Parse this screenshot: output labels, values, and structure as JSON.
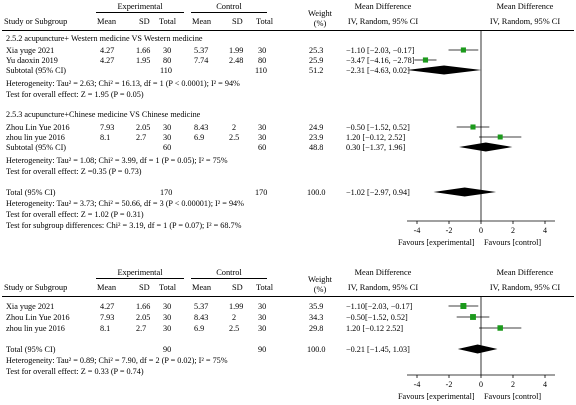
{
  "plot1": {
    "header": {
      "group_exp": "Experimental",
      "group_ctrl": "Control",
      "study": "Study or Subgroup",
      "mean": "Mean",
      "sd": "SD",
      "total": "Total",
      "weight": "Weight",
      "weight_unit": "(%)",
      "md": "Mean Difference",
      "md_method": "IV, Random, 95% CI",
      "md_plot": "Mean Difference",
      "md_plot_method": "IV, Random, 95% CI"
    },
    "subgroup1": {
      "title": "2.5.2 acupuncture+ Western medicine VS Western medicine",
      "studies": [
        {
          "name": "Xia yuge 2021",
          "e_mean": "4.27",
          "e_sd": "1.66",
          "e_n": "30",
          "c_mean": "5.37",
          "c_sd": "1.99",
          "c_n": "30",
          "weight": "25.3",
          "ci": "−1.10 [−2.03, −0.17]"
        },
        {
          "name": "Yu daoxin 2019",
          "e_mean": "4.27",
          "e_sd": "1.95",
          "e_n": "80",
          "c_mean": "7.74",
          "c_sd": "2.48",
          "c_n": "80",
          "weight": "25.9",
          "ci": "−3.47 [−4.16, −2.78]"
        }
      ],
      "subtotal": {
        "label": "Subtotal (95% CI)",
        "e_n": "110",
        "c_n": "110",
        "weight": "51.2",
        "ci": "−2.31 [−4.63, 0.02]"
      },
      "heterogeneity": "Heterogeneity: Tau² = 2.63; Chi² = 16.13, df = 1 (P < 0.0001); I² = 94%",
      "overall": "Test for overall effect: Z = 1.95 (P = 0.05)"
    },
    "subgroup2": {
      "title": "2.5.3 acupuncture+Chinese medicine VS Chinese medicine",
      "studies": [
        {
          "name": "Zhou Lin Yue 2016",
          "e_mean": "7.93",
          "e_sd": "2.05",
          "e_n": "30",
          "c_mean": "8.43",
          "c_sd": "2",
          "c_n": "30",
          "weight": "24.9",
          "ci": "−0.50 [−1.52, 0.52]"
        },
        {
          "name": "zhou lin yue 2016",
          "e_mean": "8.1",
          "e_sd": "2.7",
          "e_n": "30",
          "c_mean": "6.9",
          "c_sd": "2.5",
          "c_n": "30",
          "weight": "23.9",
          "ci": "1.20 [−0.12, 2.52]"
        }
      ],
      "subtotal": {
        "label": "Subtotal (95% CI)",
        "e_n": "60",
        "c_n": "60",
        "weight": "48.8",
        "ci": "0.30 [−1.37, 1.96]"
      },
      "heterogeneity": "Heterogeneity: Tau² = 1.08; Chi² = 3.99, df = 1 (P = 0.05); I² = 75%",
      "overall": "Test for overall effect: Z =0.35 (P = 0.73)"
    },
    "total": {
      "label": "Total (95% CI)",
      "e_n": "170",
      "c_n": "170",
      "weight": "100.0",
      "ci": "−1.02 [−2.97, 0.94]"
    },
    "heterogeneity": "Heterogeneity: Tau² = 3.73; Chi² = 50.66, df = 3 (P < 0.00001); I² = 94%",
    "overall": "Test for overall effect: Z = 1.02 (P = 0.31)",
    "subgroup_diff": "Test for subgroup differences: Chi² = 3.19, df = 1 (P = 0.07); I² = 68.7%",
    "axis_ticks": [
      "-4",
      "-2",
      "0",
      "2",
      "4"
    ],
    "favours_left": "Favours [experimental]",
    "favours_right": "Favours [control]"
  },
  "plot2": {
    "header": {
      "group_exp": "Experimental",
      "group_ctrl": "Control",
      "study": "Study or Subgroup",
      "mean": "Mean",
      "sd": "SD",
      "total": "Total",
      "weight": "Weight",
      "weight_unit": "(%)",
      "md": "Mean Difference",
      "md_method": "IV, Random, 95% CI",
      "md_plot": "Mean Difference",
      "md_plot_method": "IV, Random, 95% CI"
    },
    "studies": [
      {
        "name": "Xia yuge 2021",
        "e_mean": "4.27",
        "e_sd": "1.66",
        "e_n": "30",
        "c_mean": "5.37",
        "c_sd": "1.99",
        "c_n": "30",
        "weight": "35.9",
        "ci": "−1.10[−2.03, −0.17]"
      },
      {
        "name": "Zhou Lin Yue 2016",
        "e_mean": "7.93",
        "e_sd": "2.05",
        "e_n": "30",
        "c_mean": "8.43",
        "c_sd": "2",
        "c_n": "30",
        "weight": "34.3",
        "ci": "−0.50[−1.52, 0.52]"
      },
      {
        "name": "zhou lin yue 2016",
        "e_mean": "8.1",
        "e_sd": "2.7",
        "e_n": "30",
        "c_mean": "6.9",
        "c_sd": "2.5",
        "c_n": "30",
        "weight": "29.8",
        "ci": "1.20 [−0.12 2.52]"
      }
    ],
    "total": {
      "label": "Total (95% CI)",
      "e_n": "90",
      "c_n": "90",
      "weight": "100.0",
      "ci": "−0.21 [−1.45, 1.03]"
    },
    "heterogeneity": "Heterogeneity: Tau² = 0.89; Chi² = 7.90, df = 2 (P = 0.02); I² = 75%",
    "overall": "Test for overall effect: Z = 0.33 (P = 0.74)",
    "axis_ticks": [
      "-4",
      "-2",
      "0",
      "2",
      "4"
    ],
    "favours_left": "Favours [experimental]",
    "favours_right": "Favours [control]"
  },
  "colors": {
    "marker": "#1c9a1c",
    "diamond": "#000000",
    "line": "#000000"
  },
  "chart_data": [
    {
      "type": "forest",
      "xlim": [
        -5,
        5
      ],
      "ticks": [
        -4,
        -2,
        0,
        2,
        4
      ],
      "studies": [
        {
          "md": -1.1,
          "lo": -2.03,
          "hi": -0.17,
          "weight": 25.3
        },
        {
          "md": -3.47,
          "lo": -4.16,
          "hi": -2.78,
          "weight": 25.9
        },
        {
          "md": -0.5,
          "lo": -1.52,
          "hi": 0.52,
          "weight": 24.9
        },
        {
          "md": 1.2,
          "lo": -0.12,
          "hi": 2.52,
          "weight": 23.9
        }
      ],
      "diamonds": [
        {
          "md": -2.31,
          "lo": -4.63,
          "hi": 0.02
        },
        {
          "md": 0.3,
          "lo": -1.37,
          "hi": 1.96
        },
        {
          "md": -1.02,
          "lo": -2.97,
          "hi": 0.94
        }
      ]
    },
    {
      "type": "forest",
      "xlim": [
        -5,
        5
      ],
      "ticks": [
        -4,
        -2,
        0,
        2,
        4
      ],
      "studies": [
        {
          "md": -1.1,
          "lo": -2.03,
          "hi": -0.17,
          "weight": 35.9
        },
        {
          "md": -0.5,
          "lo": -1.52,
          "hi": 0.52,
          "weight": 34.3
        },
        {
          "md": 1.2,
          "lo": -0.12,
          "hi": 2.52,
          "weight": 29.8
        }
      ],
      "diamonds": [
        {
          "md": -0.21,
          "lo": -1.45,
          "hi": 1.03
        }
      ]
    }
  ]
}
